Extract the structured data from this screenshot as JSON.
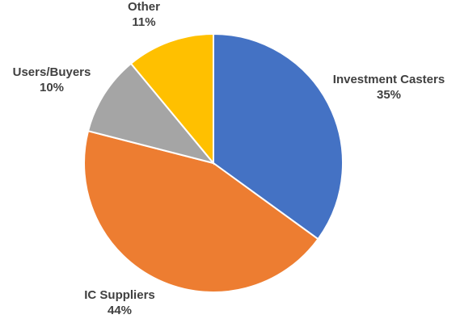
{
  "chart_data": {
    "type": "pie",
    "slices": [
      {
        "name": "Investment Casters",
        "value": 35,
        "label": "35%",
        "color": "#4472C4"
      },
      {
        "name": "IC Suppliers",
        "value": 44,
        "label": "44%",
        "color": "#ED7D31"
      },
      {
        "name": "Users/Buyers",
        "value": 10,
        "label": "10%",
        "color": "#A5A5A5"
      },
      {
        "name": "Other",
        "value": 11,
        "label": "11%",
        "color": "#FFC000"
      }
    ],
    "start_angle": "12 o'clock",
    "direction": "clockwise",
    "legend": "none (category names shown as data labels outside slices)"
  }
}
